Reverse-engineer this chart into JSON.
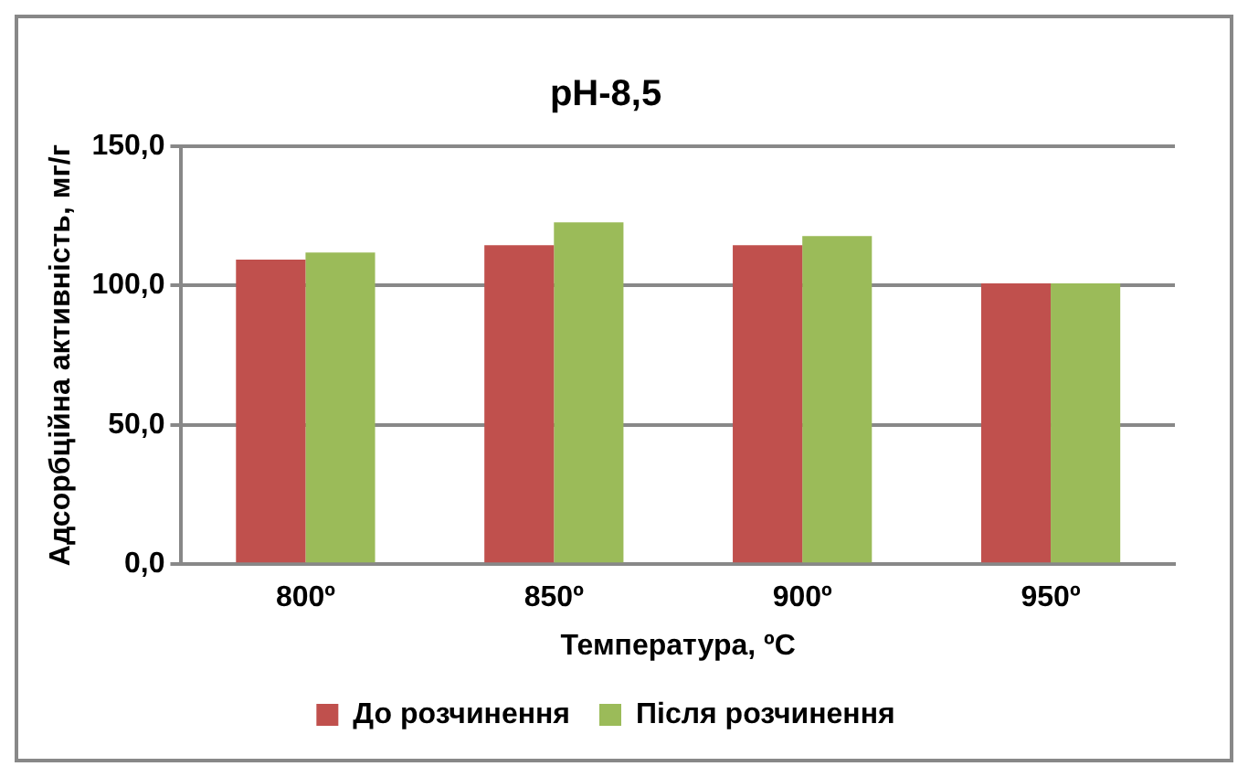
{
  "chart_data": {
    "type": "bar",
    "title": "pH-8,5",
    "xlabel": "Температура, ºС",
    "ylabel": "Адсорбційна активність, мг/г",
    "categories": [
      "800º",
      "850º",
      "900º",
      "950º"
    ],
    "series": [
      {
        "name": "До розчинення",
        "color": "#c0504d",
        "values": [
          109.3,
          114.5,
          114.5,
          100.8
        ]
      },
      {
        "name": "Після розчинення",
        "color": "#9bbb59",
        "values": [
          111.9,
          122.7,
          117.8,
          100.8
        ]
      }
    ],
    "ylim": [
      0,
      150
    ],
    "yticks": [
      {
        "value": 0,
        "label": "0,0"
      },
      {
        "value": 50,
        "label": "50,0"
      },
      {
        "value": 100,
        "label": "100,0"
      },
      {
        "value": 150,
        "label": "150,0"
      }
    ],
    "grid": "y",
    "legend": "bottom"
  }
}
